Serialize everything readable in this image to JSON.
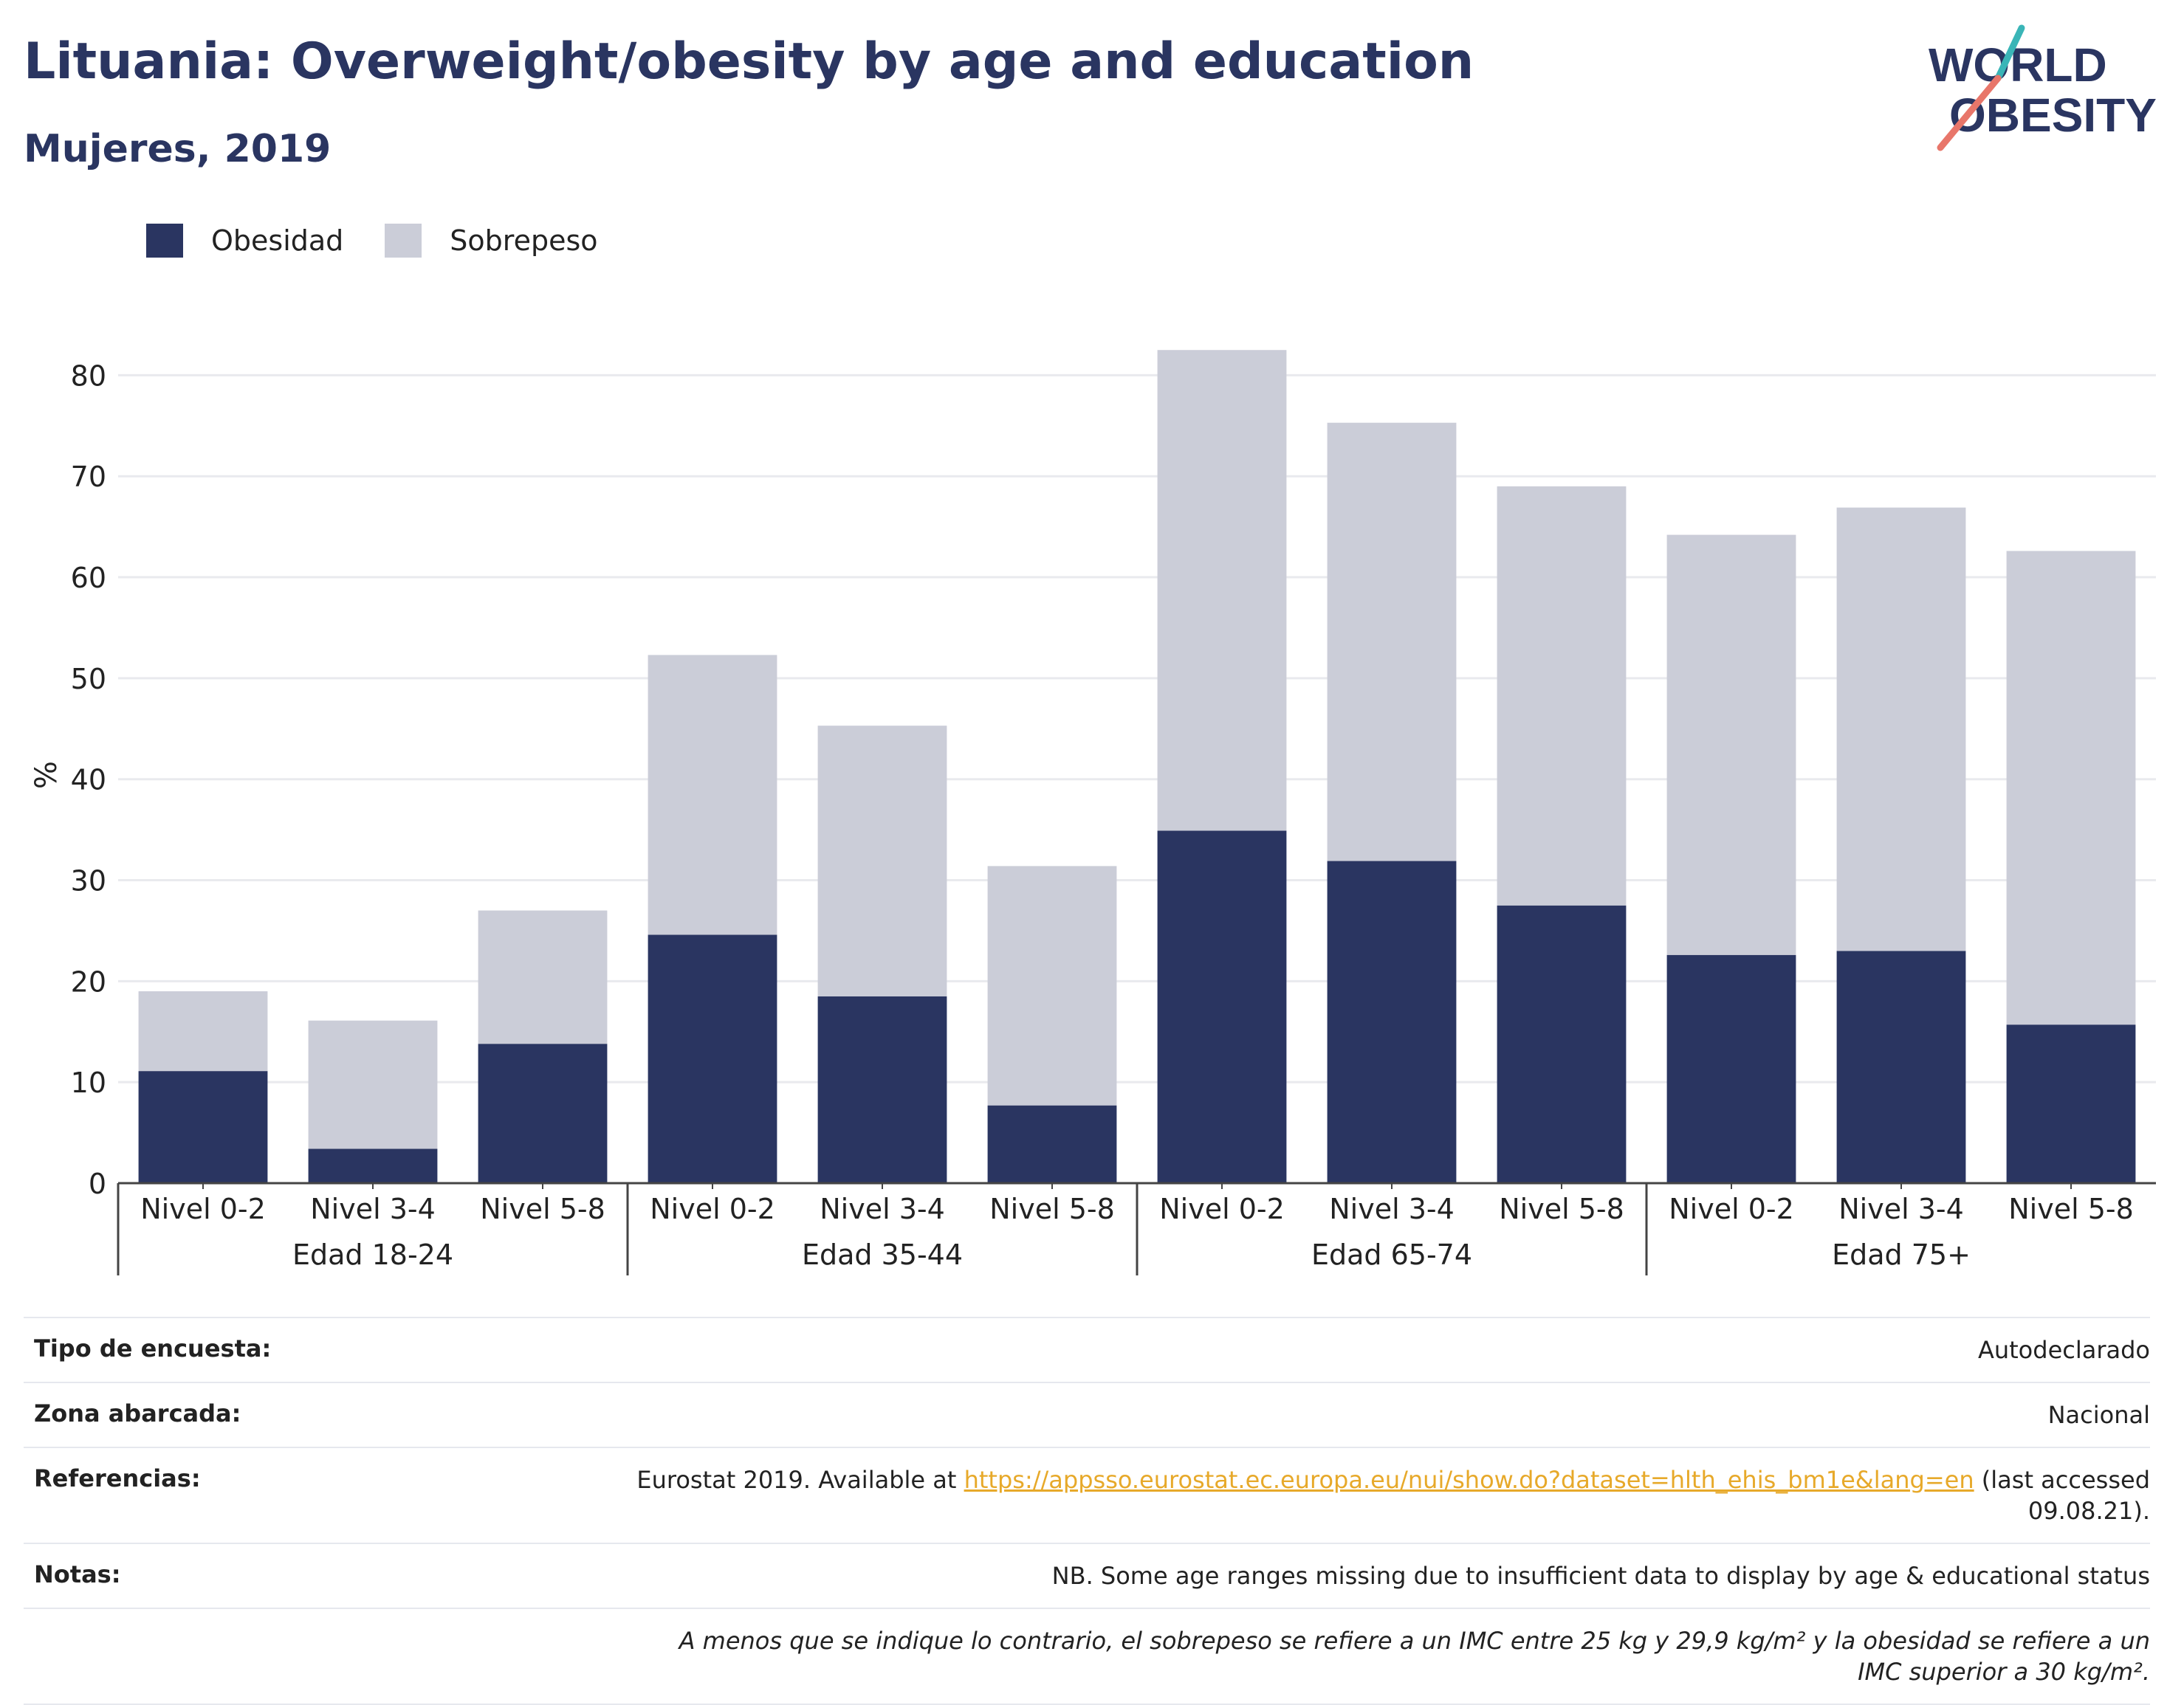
{
  "title": "Lituania: Overweight/obesity by age and education",
  "subtitle": "Mujeres, 2019",
  "logo": {
    "line1": "WORLD",
    "line2": "OBESITY",
    "accent_teal": "#3ab5b7",
    "accent_coral": "#e8766a"
  },
  "colors": {
    "obesidad": "#2a3561",
    "sobrepeso": "#cbcdd8",
    "grid": "#e9eaee",
    "axis": "#444444",
    "text": "#222222"
  },
  "chart_data": {
    "type": "bar",
    "stacked": true,
    "ylabel": "%",
    "ylim": [
      0,
      85
    ],
    "yticks": [
      0,
      10,
      20,
      30,
      40,
      50,
      60,
      70,
      80
    ],
    "grid": true,
    "legend": "top-left",
    "groups": [
      {
        "label": "Edad 18-24",
        "categories": [
          "Nivel 0-2",
          "Nivel 3-4",
          "Nivel 5-8"
        ]
      },
      {
        "label": "Edad 35-44",
        "categories": [
          "Nivel 0-2",
          "Nivel 3-4",
          "Nivel 5-8"
        ]
      },
      {
        "label": "Edad 65-74",
        "categories": [
          "Nivel 0-2",
          "Nivel 3-4",
          "Nivel 5-8"
        ]
      },
      {
        "label": "Edad 75+",
        "categories": [
          "Nivel 0-2",
          "Nivel 3-4",
          "Nivel 5-8"
        ]
      }
    ],
    "series": [
      {
        "name": "Obesidad",
        "values": [
          11.1,
          3.4,
          13.8,
          24.6,
          18.5,
          7.7,
          34.9,
          31.9,
          27.5,
          22.6,
          23.0,
          15.7
        ]
      },
      {
        "name": "Sobrepeso",
        "values": [
          7.9,
          12.7,
          13.2,
          27.7,
          26.8,
          23.7,
          47.6,
          43.4,
          41.5,
          41.6,
          43.9,
          46.9
        ]
      }
    ]
  },
  "meta": {
    "survey_type": {
      "label": "Tipo de encuesta:",
      "value": "Autodeclarado"
    },
    "area": {
      "label": "Zona abarcada:",
      "value": "Nacional"
    },
    "references": {
      "label": "Referencias:",
      "prefix": "Eurostat 2019. Available at ",
      "link": "https://appsso.eurostat.ec.europa.eu/nui/show.do?dataset=hlth_ehis_bm1e&lang=en",
      "suffix": " (last accessed 09.08.21)."
    },
    "notes": {
      "label": "Notas:",
      "value": "NB. Some age ranges missing due to insufficient data to display by age & educational status"
    },
    "footnote": "A menos que se indique lo contrario, el sobrepeso se refiere a un IMC entre 25 kg y 29,9 kg/m² y la obesidad se refiere a un IMC superior a 30 kg/m²."
  }
}
